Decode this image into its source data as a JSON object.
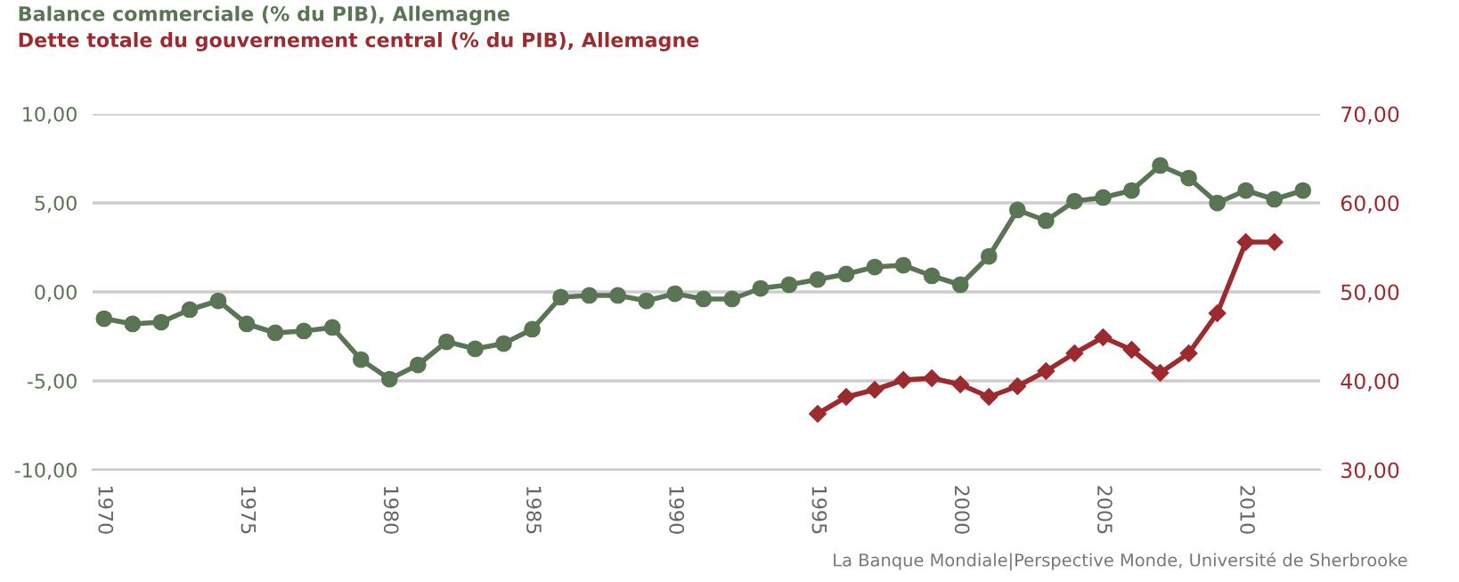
{
  "chart_data": {
    "type": "line",
    "x": [
      1970,
      1971,
      1972,
      1973,
      1974,
      1975,
      1976,
      1977,
      1978,
      1979,
      1980,
      1981,
      1982,
      1983,
      1984,
      1985,
      1986,
      1987,
      1988,
      1989,
      1990,
      1991,
      1992,
      1993,
      1994,
      1995,
      1996,
      1997,
      1998,
      1999,
      2000,
      2001,
      2002,
      2003,
      2004,
      2005,
      2006,
      2007,
      2008,
      2009,
      2010,
      2011,
      2012
    ],
    "series": [
      {
        "name": "Balance commerciale (% du PIB), Allemagne",
        "color": "#5a7553",
        "marker": "circle",
        "values": [
          -1.5,
          -1.8,
          -1.7,
          -1.0,
          -0.5,
          -1.8,
          -2.3,
          -2.2,
          -2.0,
          -3.8,
          -4.9,
          -4.1,
          -2.8,
          -3.2,
          -2.9,
          -2.1,
          -0.3,
          -0.2,
          -0.2,
          -0.5,
          -0.1,
          -0.4,
          -0.4,
          0.2,
          0.4,
          0.7,
          1.0,
          1.4,
          1.5,
          0.9,
          0.4,
          2.0,
          4.6,
          4.0,
          5.1,
          5.3,
          5.7,
          7.1,
          6.4,
          5.0,
          5.7,
          5.2,
          5.7
        ]
      },
      {
        "name": "Dette totale du gouvernement central (% du PIB), Allemagne",
        "color": "#9b2b2e",
        "marker": "diamond",
        "axis": "y2",
        "x": [
          1995,
          1996,
          1997,
          1998,
          1999,
          2000,
          2001,
          2002,
          2003,
          2004,
          2005,
          2006,
          2007,
          2008,
          2009,
          2010,
          2011
        ],
        "values": [
          36.3,
          38.2,
          39.0,
          40.1,
          40.3,
          39.6,
          38.2,
          39.4,
          41.1,
          43.1,
          44.9,
          43.5,
          40.9,
          43.1,
          47.6,
          55.6,
          55.6
        ]
      }
    ],
    "xlim": [
      1969.6,
      2012.6
    ],
    "xticks": [
      1970,
      1975,
      1980,
      1985,
      1990,
      1995,
      2000,
      2005,
      2010
    ],
    "ylim": [
      -10,
      10
    ],
    "yticks": [
      {
        "value": -10,
        "label": "-10,00"
      },
      {
        "value": -5,
        "label": "-5,00"
      },
      {
        "value": 0,
        "label": "0,00"
      },
      {
        "value": 5,
        "label": "5,00"
      },
      {
        "value": 10,
        "label": "10,00"
      }
    ],
    "y2lim": [
      30,
      70
    ],
    "y2ticks": [
      {
        "value": 30,
        "label": "30,00"
      },
      {
        "value": 40,
        "label": "40,00"
      },
      {
        "value": 50,
        "label": "50,00"
      },
      {
        "value": 60,
        "label": "60,00"
      },
      {
        "value": 70,
        "label": "70,00"
      }
    ],
    "grid": "y",
    "legend": "top left",
    "annotations": [
      "La Banque Mondiale|Perspective Monde, Université de Sherbrooke"
    ]
  }
}
